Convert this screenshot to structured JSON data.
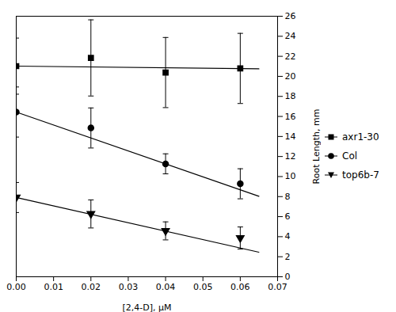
{
  "chart_data": {
    "type": "scatter",
    "xlabel": "[2,4-D], μM",
    "ylabel": "Root Length, mm",
    "x": [
      0.0,
      0.02,
      0.04,
      0.06
    ],
    "series": [
      {
        "name": "axr1-30",
        "color": "#000000",
        "marker": "square",
        "values": [
          21.02,
          21.84,
          20.38,
          20.79
        ],
        "yerr": [
          2.8,
          3.8,
          3.5,
          3.5
        ],
        "fit": {
          "x": [
            0.0,
            0.065
          ],
          "values": [
            21.02,
            20.75285
          ]
        }
      },
      {
        "name": "Col",
        "color": "#000000",
        "marker": "circle",
        "values": [
          16.44,
          14.85,
          11.27,
          9.28
        ],
        "yerr": [
          2.5,
          2.0,
          1.0,
          1.5
        ],
        "fit": {
          "x": [
            0.0,
            0.065
          ],
          "values": [
            16.44,
            8.0342
          ]
        }
      },
      {
        "name": "top6b-7",
        "color": "#000000",
        "marker": "triangle_down",
        "values": [
          7.91,
          6.27,
          4.58,
          3.87
        ],
        "yerr": [
          1.5,
          1.4,
          0.9,
          1.1
        ],
        "fit": {
          "x": [
            0.0,
            0.065
          ],
          "values": [
            7.91,
            2.4513
          ]
        }
      }
    ],
    "xlim": [
      0.0,
      0.07
    ],
    "xticks": [
      {
        "value": 0,
        "label": "0.00"
      },
      0.01,
      0.02,
      0.03,
      0.04,
      0.05,
      0.06,
      0.07
    ],
    "ylim": [
      0,
      26
    ],
    "yticks": [
      0,
      2,
      4,
      6,
      8,
      10,
      12,
      14,
      16,
      18,
      20,
      22,
      24,
      26
    ],
    "grid": false,
    "legend": "right"
  }
}
